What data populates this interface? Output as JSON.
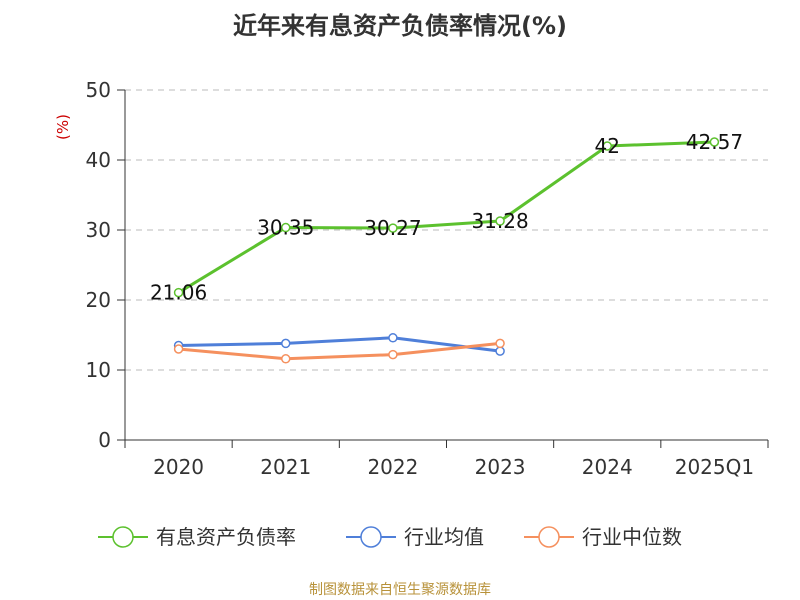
{
  "chart_data": {
    "type": "line",
    "title": "近年来有息资产负债率情况(%)",
    "ylabel": "(%)",
    "xlabel": "",
    "categories": [
      "2020",
      "2021",
      "2022",
      "2023",
      "2024",
      "2025Q1"
    ],
    "ylim": [
      0,
      50
    ],
    "yticks": [
      0,
      10,
      20,
      30,
      40,
      50
    ],
    "grid": true,
    "legend_position": "bottom",
    "series": [
      {
        "name": "有息资产负债率",
        "color": "#5cc12e",
        "values": [
          21.06,
          30.35,
          30.27,
          31.28,
          42,
          42.57
        ],
        "labels": [
          "21.06",
          "30.35",
          "30.27",
          "31.28",
          "42",
          "42.57"
        ]
      },
      {
        "name": "行业均值",
        "color": "#4f7fd9",
        "values": [
          13.5,
          13.8,
          14.6,
          12.7,
          null,
          null
        ]
      },
      {
        "name": "行业中位数",
        "color": "#f5905e",
        "values": [
          13.0,
          11.6,
          12.2,
          13.8,
          null,
          null
        ]
      }
    ]
  },
  "source": "制图数据来自恒生聚源数据库"
}
